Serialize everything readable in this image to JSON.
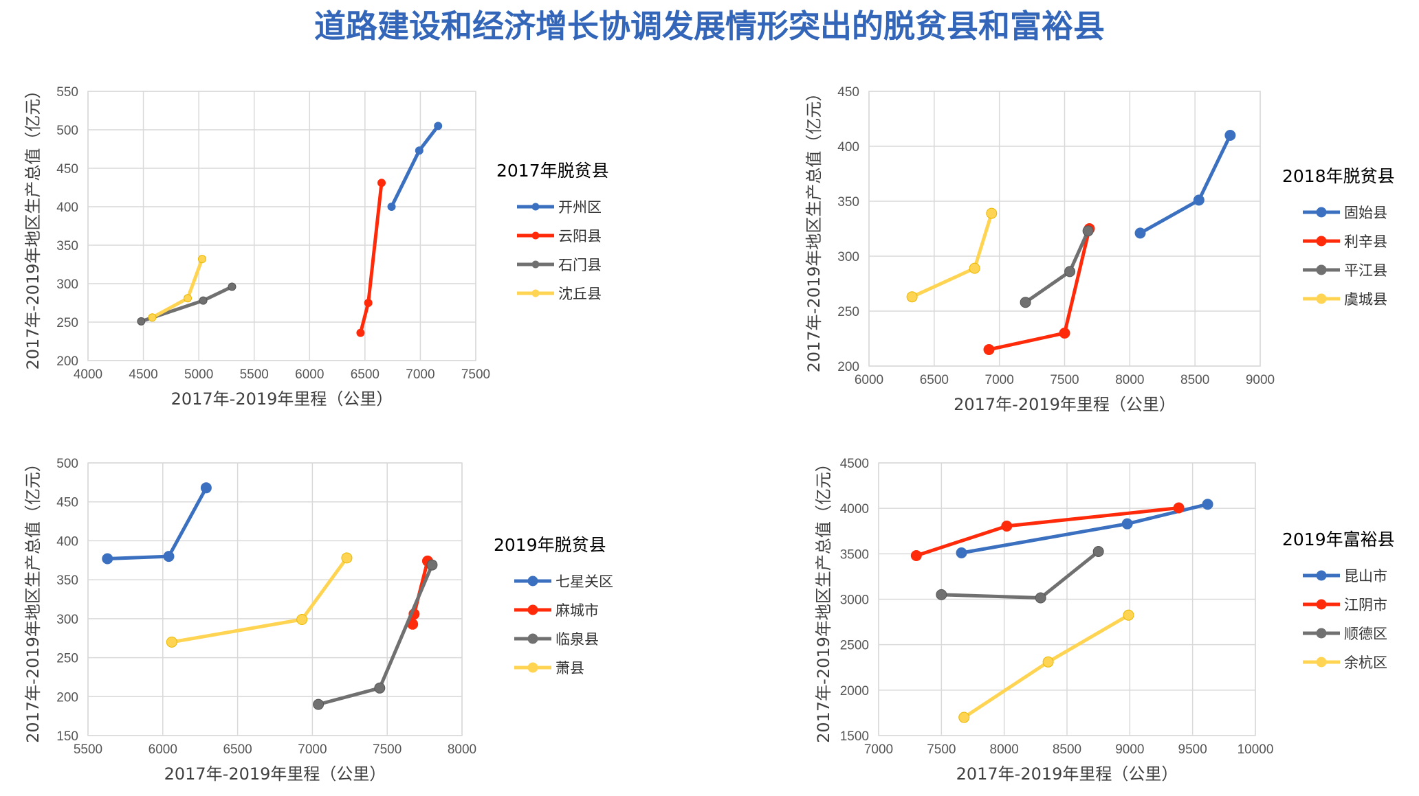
{
  "title": "道路建设和经济增长协调发展情形突出的脱贫县和富裕县",
  "colors": {
    "title": "#3366b8",
    "blue": "#3a70bf",
    "red": "#ff2a0a",
    "gray": "#707070",
    "yellow": "#ffd452"
  },
  "chart_data": [
    {
      "type": "line",
      "legend_title": "2017年脱贫县",
      "xlabel": "2017年-2019年里程（公里）",
      "ylabel": "2017年-2019年地区生产总值（亿元）",
      "xlim": [
        4000,
        7500
      ],
      "xticks": [
        4000,
        4500,
        5000,
        5500,
        6000,
        6500,
        7000,
        7500
      ],
      "ylim": [
        200,
        550
      ],
      "yticks": [
        200,
        250,
        300,
        350,
        400,
        450,
        500,
        550
      ],
      "grid": true,
      "legend": "right",
      "series": [
        {
          "name": "开州区",
          "color": "#3a70bf",
          "x": [
            6740,
            6990,
            7160
          ],
          "y": [
            400,
            473,
            505
          ]
        },
        {
          "name": "云阳县",
          "color": "#ff2a0a",
          "x": [
            6460,
            6530,
            6650
          ],
          "y": [
            236,
            275,
            431
          ]
        },
        {
          "name": "石门县",
          "color": "#707070",
          "x": [
            4480,
            5040,
            5300
          ],
          "y": [
            251,
            278,
            296
          ]
        },
        {
          "name": "沈丘县",
          "color": "#ffd452",
          "x": [
            4580,
            4900,
            5030
          ],
          "y": [
            256,
            281,
            332
          ]
        }
      ]
    },
    {
      "type": "line",
      "legend_title": "2018年脱贫县",
      "xlabel": "2017年-2019年里程（公里）",
      "ylabel": "2017年-2019年地区生产总值（亿元）",
      "xlim": [
        6000,
        9000
      ],
      "xticks": [
        6000,
        6500,
        7000,
        7500,
        8000,
        8500,
        9000
      ],
      "ylim": [
        200,
        450
      ],
      "yticks": [
        200,
        250,
        300,
        350,
        400,
        450
      ],
      "grid": true,
      "legend": "right",
      "series": [
        {
          "name": "固始县",
          "color": "#3a70bf",
          "x": [
            8080,
            8530,
            8770
          ],
          "y": [
            321,
            351,
            410
          ]
        },
        {
          "name": "利辛县",
          "color": "#ff2a0a",
          "x": [
            6920,
            7500,
            7690
          ],
          "y": [
            215,
            230,
            325
          ]
        },
        {
          "name": "平江县",
          "color": "#707070",
          "x": [
            7200,
            7540,
            7680
          ],
          "y": [
            258,
            286,
            323
          ]
        },
        {
          "name": "虞城县",
          "color": "#ffd452",
          "x": [
            6330,
            6810,
            6940
          ],
          "y": [
            263,
            289,
            339
          ]
        }
      ]
    },
    {
      "type": "line",
      "legend_title": "2019年脱贫县",
      "xlabel": "2017年-2019年里程（公里）",
      "ylabel": "2017年-2019年地区生产总值（亿元）",
      "xlim": [
        5500,
        8000
      ],
      "xticks": [
        5500,
        6000,
        6500,
        7000,
        7500,
        8000
      ],
      "ylim": [
        150,
        500
      ],
      "yticks": [
        150,
        200,
        250,
        300,
        350,
        400,
        450,
        500
      ],
      "grid": true,
      "legend": "right",
      "series": [
        {
          "name": "七星关区",
          "color": "#3a70bf",
          "x": [
            5630,
            6040,
            6290
          ],
          "y": [
            377,
            380,
            468
          ]
        },
        {
          "name": "麻城市",
          "color": "#ff2a0a",
          "x": [
            7670,
            7680,
            7770
          ],
          "y": [
            293,
            306,
            374
          ]
        },
        {
          "name": "临泉县",
          "color": "#707070",
          "x": [
            7040,
            7450,
            7800
          ],
          "y": [
            190,
            211,
            369
          ]
        },
        {
          "name": "萧县",
          "color": "#ffd452",
          "x": [
            6060,
            6930,
            7230
          ],
          "y": [
            270,
            299,
            378
          ]
        }
      ]
    },
    {
      "type": "line",
      "legend_title": "2019年富裕县",
      "xlabel": "2017年-2019年里程（公里）",
      "ylabel": "2017年-2019年地区生产总值（亿元）",
      "xlim": [
        7000,
        10000
      ],
      "xticks": [
        7000,
        7500,
        8000,
        8500,
        9000,
        9500,
        10000
      ],
      "ylim": [
        1500,
        4500
      ],
      "yticks": [
        1500,
        2000,
        2500,
        3000,
        3500,
        4000,
        4500
      ],
      "grid": true,
      "legend": "right",
      "series": [
        {
          "name": "昆山市",
          "color": "#3a70bf",
          "x": [
            7660,
            8980,
            9620
          ],
          "y": [
            3510,
            3830,
            4045
          ]
        },
        {
          "name": "江阴市",
          "color": "#ff2a0a",
          "x": [
            7300,
            8020,
            9390
          ],
          "y": [
            3480,
            3805,
            4005
          ]
        },
        {
          "name": "顺德区",
          "color": "#707070",
          "x": [
            7500,
            8290,
            8750
          ],
          "y": [
            3050,
            3015,
            3525
          ]
        },
        {
          "name": "余杭区",
          "color": "#ffd452",
          "x": [
            7680,
            8350,
            8990
          ],
          "y": [
            1700,
            2310,
            2825
          ]
        }
      ]
    }
  ]
}
